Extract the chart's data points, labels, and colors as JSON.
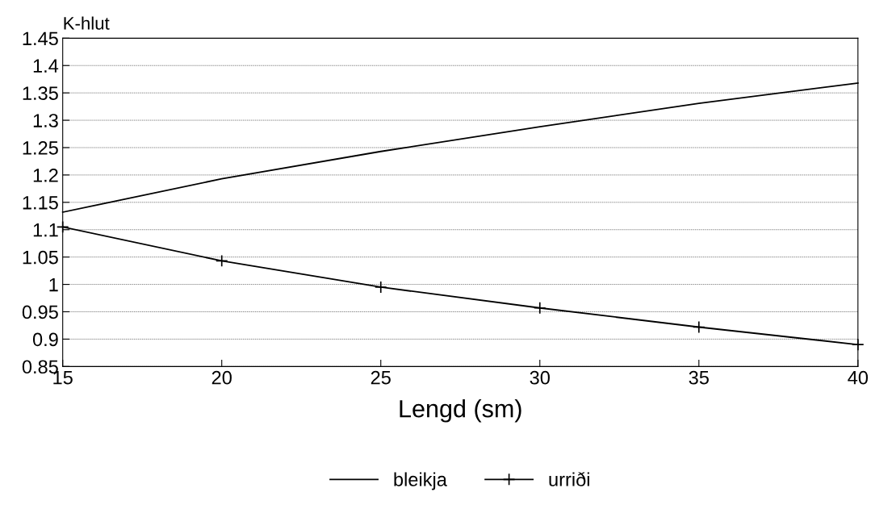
{
  "chart_data": {
    "type": "line",
    "xlabel": "Lengd (sm)",
    "ylabel": "K-hlut",
    "x": [
      15,
      20,
      25,
      30,
      35,
      40
    ],
    "series": [
      {
        "name": "bleikja",
        "color": "#000000",
        "marker": "none",
        "values": [
          1.132,
          1.193,
          1.243,
          1.288,
          1.331,
          1.368
        ]
      },
      {
        "name": "urriði",
        "color": "#000000",
        "marker": "cross",
        "values": [
          1.105,
          1.043,
          0.995,
          0.957,
          0.922,
          0.89
        ]
      }
    ],
    "xlim": [
      15,
      40
    ],
    "xticks": [
      15,
      20,
      25,
      30,
      35,
      40
    ],
    "ylim": [
      0.85,
      1.45
    ],
    "yticks": [
      0.85,
      0.9,
      0.95,
      1,
      1.05,
      1.1,
      1.15,
      1.2,
      1.25,
      1.3,
      1.35,
      1.4,
      1.45
    ],
    "grid": "y",
    "legend": "bottom",
    "line_style": "solid"
  }
}
